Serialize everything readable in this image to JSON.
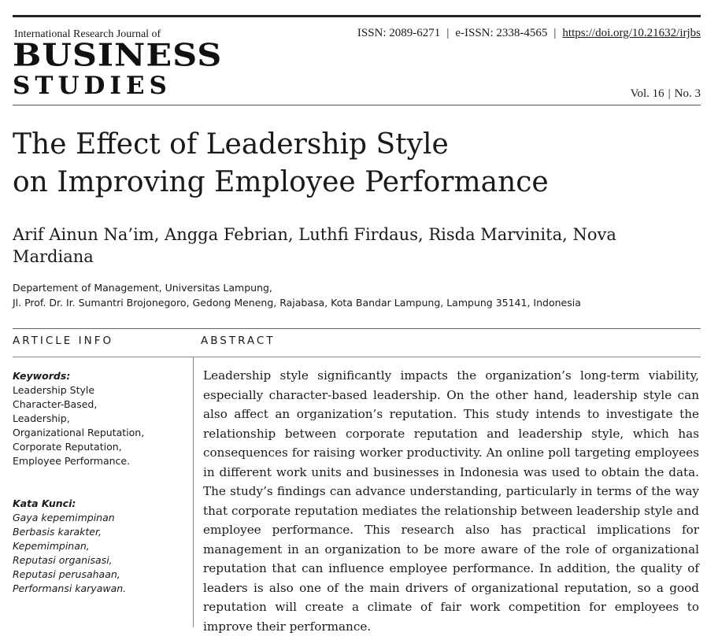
{
  "journal": {
    "name_line": "International Research Journal of",
    "name_main_1": "BUSINESS",
    "name_main_2": "STUDIES"
  },
  "issn": {
    "print": "ISSN: 2089-6271",
    "separator": "|",
    "electronic": "e-ISSN: 2338-4565",
    "doi": "https://doi.org/10.21632/irjbs"
  },
  "volume": {
    "vol": "Vol. 16",
    "separator": "|",
    "no": "No. 3"
  },
  "paper": {
    "title_line_1": "The Effect of Leadership Style",
    "title_line_2": "on Improving Employee Performance",
    "authors": "Arif Ainun Na’im, Angga Febrian, Luthfi Firdaus, Risda Marvinita, Nova Mardiana",
    "affiliation_line_1": "Departement of Management, Universitas Lampung,",
    "affiliation_line_2": "Jl. Prof. Dr. Ir. Sumantri Brojonegoro, Gedong Meneng, Rajabasa, Kota Bandar Lampung, Lampung 35141, Indonesia"
  },
  "sections": {
    "article_info": "ARTICLE INFO",
    "abstract": "ABSTRACT"
  },
  "keywords": {
    "heading": "Keywords:",
    "items": [
      "Leadership Style",
      "Character-Based,",
      "Leadership,",
      "Organizational Reputation,",
      "Corporate Reputation,",
      "Employee Performance."
    ]
  },
  "kata_kunci": {
    "heading": "Kata Kunci:",
    "items": [
      "Gaya kepemimpinan",
      "Berbasis karakter,",
      "Kepemimpinan,",
      "Reputasi organisasi,",
      "Reputasi perusahaan,",
      "Performansi karyawan."
    ]
  },
  "abstract_text": "Leadership style significantly impacts the organization’s long-term viability, especially character-based leadership. On the other hand, leadership style can also affect an organization’s reputation. This study intends to investigate the relationship between corporate reputation and leadership style, which has consequences for raising worker productivity. An online poll targeting employees in different work units and businesses in Indonesia was used to obtain the data. The study’s findings can advance understanding, particularly in terms of the way that corporate reputation mediates the relationship between leadership style and employee performance. This research also has practical implications for management in an organization to be more aware of the role of organizational reputation that can influence employee performance. In addition, the quality of leaders is also one of the main drivers of organizational reputation, so a good reputation will create a climate of fair work competition for employees to improve their performance."
}
